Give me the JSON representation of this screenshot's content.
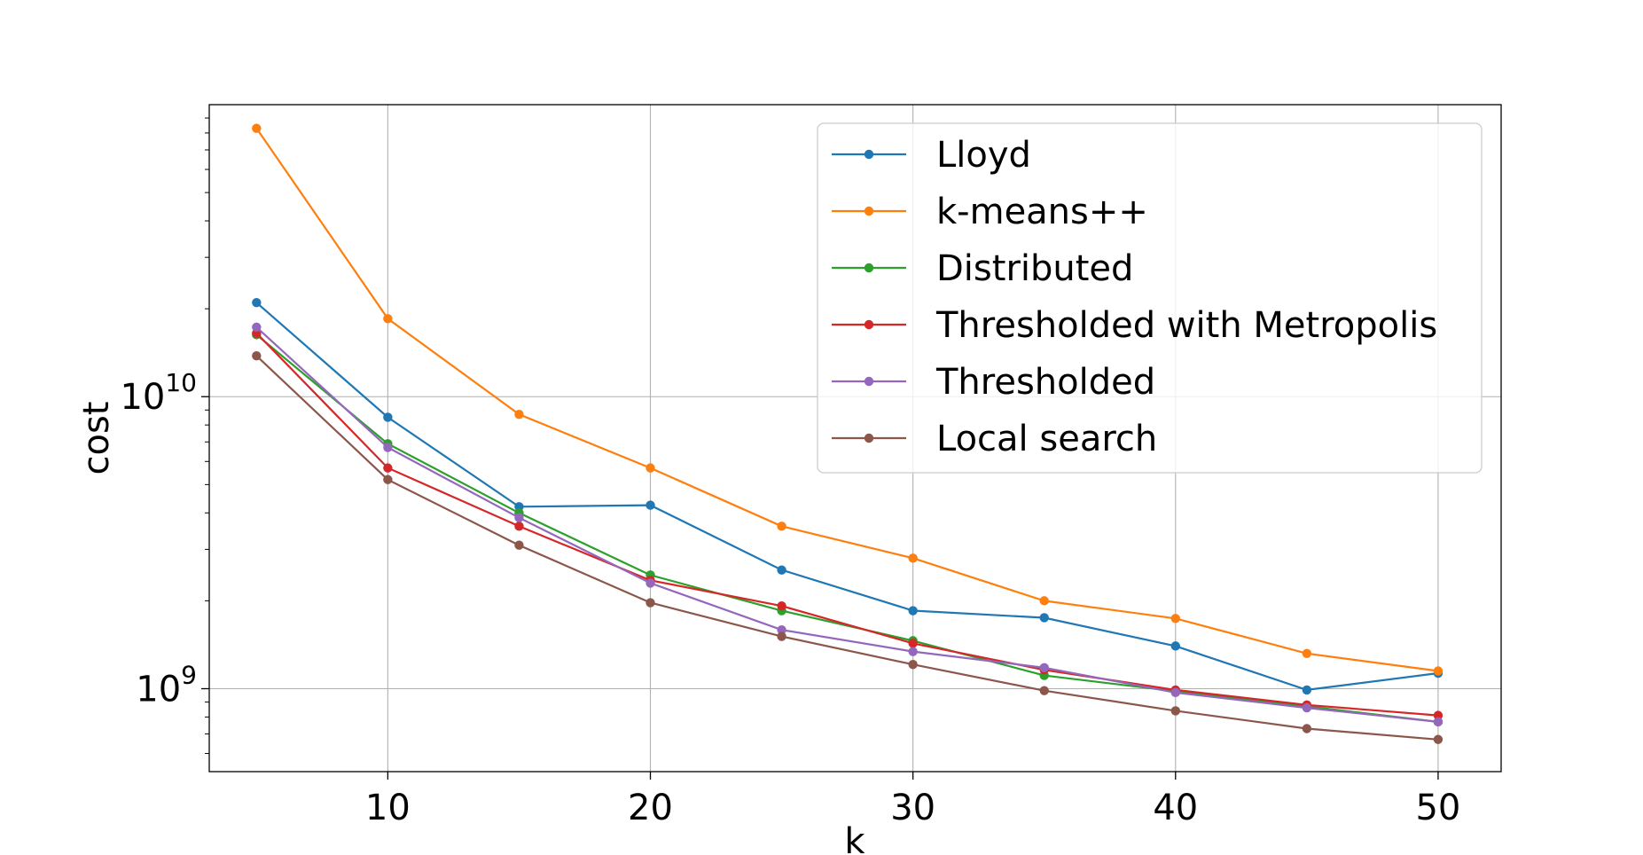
{
  "chart_data": {
    "type": "line",
    "xlabel": "k",
    "ylabel": "cost",
    "yscale": "log",
    "xlim": [
      3.2,
      52.4
    ],
    "ylim": [
      520000000,
      100000000000
    ],
    "xticks": [
      10,
      20,
      30,
      40,
      50
    ],
    "xtick_labels": [
      "10",
      "20",
      "30",
      "40",
      "50"
    ],
    "yticks": [
      {
        "value": 1000000000,
        "base": "10",
        "exp": "9"
      },
      {
        "value": 10000000000,
        "base": "10",
        "exp": "10"
      }
    ],
    "grid": true,
    "legend_position": "top-right",
    "x": [
      5,
      10,
      15,
      20,
      25,
      30,
      35,
      40,
      45,
      50
    ],
    "series": [
      {
        "name": "Lloyd",
        "color": "#1f77b4",
        "values": [
          21000000000,
          8500000000,
          4200000000,
          4250000000,
          2550000000,
          1850000000,
          1750000000,
          1400000000,
          990000000,
          1130000000
        ]
      },
      {
        "name": "k-means++",
        "color": "#ff7f0e",
        "values": [
          83000000000,
          18500000000,
          8700000000,
          5700000000,
          3600000000,
          2800000000,
          2000000000,
          1740000000,
          1320000000,
          1150000000
        ]
      },
      {
        "name": "Distributed",
        "color": "#2ca02c",
        "values": [
          16300000000,
          6900000000,
          4000000000,
          2450000000,
          1850000000,
          1460000000,
          1110000000,
          980000000,
          870000000,
          770000000
        ]
      },
      {
        "name": "Thresholded with Metropolis",
        "color": "#d62728",
        "values": [
          16500000000,
          5700000000,
          3600000000,
          2350000000,
          1920000000,
          1430000000,
          1160000000,
          990000000,
          880000000,
          810000000
        ]
      },
      {
        "name": "Thresholded",
        "color": "#9467bd",
        "values": [
          17300000000,
          6700000000,
          3850000000,
          2300000000,
          1590000000,
          1340000000,
          1180000000,
          970000000,
          860000000,
          770000000
        ]
      },
      {
        "name": "Local search",
        "color": "#8c564b",
        "values": [
          13800000000,
          5200000000,
          3100000000,
          1970000000,
          1510000000,
          1210000000,
          985000000,
          840000000,
          730000000,
          670000000
        ]
      }
    ]
  }
}
